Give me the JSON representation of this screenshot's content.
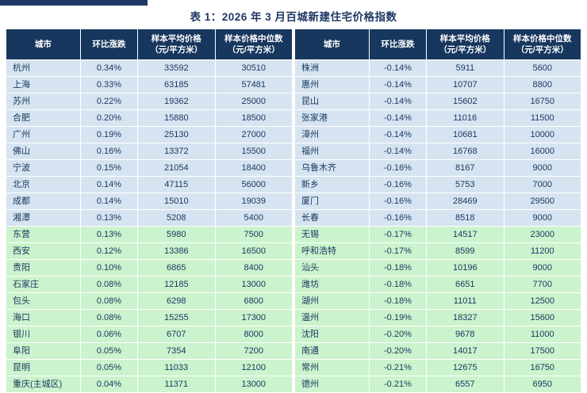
{
  "title": "表 1：2026 年 3 月百城新建住宅价格指数",
  "columns": {
    "city": "城市",
    "change": "环比涨跌",
    "avg": "样本平均价格\n（元/平方米）",
    "median": "样本价格中位数\n（元/平方米）"
  },
  "colors": {
    "header_bg": "#17375E",
    "title_color": "#1F3864",
    "row_blue": "#D6E4F1",
    "row_green": "#CBF3CD"
  },
  "left_table": {
    "blue_rows": 10,
    "rows": [
      {
        "city": "杭州",
        "change": "0.34%",
        "avg": "33592",
        "median": "30510"
      },
      {
        "city": "上海",
        "change": "0.33%",
        "avg": "63185",
        "median": "57481"
      },
      {
        "city": "苏州",
        "change": "0.22%",
        "avg": "19362",
        "median": "25000"
      },
      {
        "city": "合肥",
        "change": "0.20%",
        "avg": "15880",
        "median": "18500"
      },
      {
        "city": "广州",
        "change": "0.19%",
        "avg": "25130",
        "median": "27000"
      },
      {
        "city": "佛山",
        "change": "0.16%",
        "avg": "13372",
        "median": "15500"
      },
      {
        "city": "宁波",
        "change": "0.15%",
        "avg": "21054",
        "median": "18400"
      },
      {
        "city": "北京",
        "change": "0.14%",
        "avg": "47115",
        "median": "56000"
      },
      {
        "city": "成都",
        "change": "0.14%",
        "avg": "15010",
        "median": "19039"
      },
      {
        "city": "湘潭",
        "change": "0.13%",
        "avg": "5208",
        "median": "5400"
      },
      {
        "city": "东营",
        "change": "0.13%",
        "avg": "5980",
        "median": "7500"
      },
      {
        "city": "西安",
        "change": "0.12%",
        "avg": "13386",
        "median": "16500"
      },
      {
        "city": "贵阳",
        "change": "0.10%",
        "avg": "6865",
        "median": "8400"
      },
      {
        "city": "石家庄",
        "change": "0.08%",
        "avg": "12185",
        "median": "13000"
      },
      {
        "city": "包头",
        "change": "0.08%",
        "avg": "6298",
        "median": "6800"
      },
      {
        "city": "海口",
        "change": "0.08%",
        "avg": "15255",
        "median": "17300"
      },
      {
        "city": "银川",
        "change": "0.06%",
        "avg": "6707",
        "median": "8000"
      },
      {
        "city": "阜阳",
        "change": "0.05%",
        "avg": "7354",
        "median": "7200"
      },
      {
        "city": "昆明",
        "change": "0.05%",
        "avg": "11033",
        "median": "12100"
      },
      {
        "city": "重庆(主城区)",
        "change": "0.04%",
        "avg": "11371",
        "median": "13000"
      }
    ]
  },
  "right_table": {
    "blue_rows": 10,
    "rows": [
      {
        "city": "株洲",
        "change": "-0.14%",
        "avg": "5911",
        "median": "5600"
      },
      {
        "city": "惠州",
        "change": "-0.14%",
        "avg": "10707",
        "median": "8800"
      },
      {
        "city": "昆山",
        "change": "-0.14%",
        "avg": "15602",
        "median": "16750"
      },
      {
        "city": "张家港",
        "change": "-0.14%",
        "avg": "11016",
        "median": "11500"
      },
      {
        "city": "漳州",
        "change": "-0.14%",
        "avg": "10681",
        "median": "10000"
      },
      {
        "city": "福州",
        "change": "-0.14%",
        "avg": "16768",
        "median": "16000"
      },
      {
        "city": "乌鲁木齐",
        "change": "-0.16%",
        "avg": "8167",
        "median": "9000"
      },
      {
        "city": "新乡",
        "change": "-0.16%",
        "avg": "5753",
        "median": "7000"
      },
      {
        "city": "厦门",
        "change": "-0.16%",
        "avg": "28469",
        "median": "29500"
      },
      {
        "city": "长春",
        "change": "-0.16%",
        "avg": "8518",
        "median": "9000"
      },
      {
        "city": "无锡",
        "change": "-0.17%",
        "avg": "14517",
        "median": "23000"
      },
      {
        "city": "呼和浩特",
        "change": "-0.17%",
        "avg": "8599",
        "median": "11200"
      },
      {
        "city": "汕头",
        "change": "-0.18%",
        "avg": "10196",
        "median": "9000"
      },
      {
        "city": "潍坊",
        "change": "-0.18%",
        "avg": "6651",
        "median": "7700"
      },
      {
        "city": "湖州",
        "change": "-0.18%",
        "avg": "11011",
        "median": "12500"
      },
      {
        "city": "温州",
        "change": "-0.19%",
        "avg": "18327",
        "median": "15600"
      },
      {
        "city": "沈阳",
        "change": "-0.20%",
        "avg": "9678",
        "median": "11000"
      },
      {
        "city": "南通",
        "change": "-0.20%",
        "avg": "14017",
        "median": "17500"
      },
      {
        "city": "常州",
        "change": "-0.21%",
        "avg": "12675",
        "median": "16750"
      },
      {
        "city": "德州",
        "change": "-0.21%",
        "avg": "6557",
        "median": "6950"
      }
    ]
  }
}
